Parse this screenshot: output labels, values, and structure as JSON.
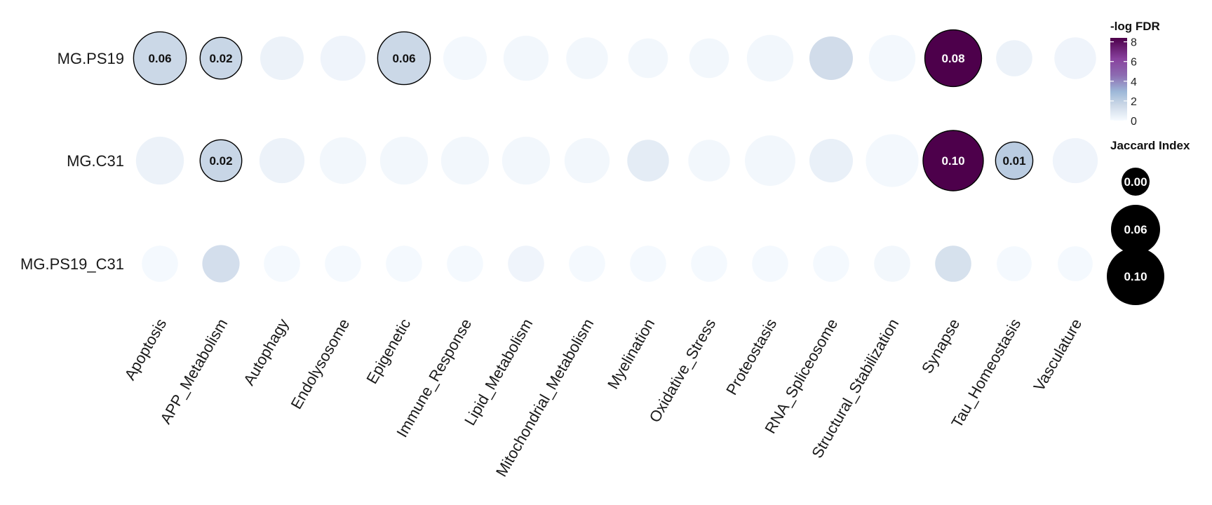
{
  "chart_data": {
    "type": "dot",
    "rows": [
      "MG.PS19",
      "MG.C31",
      "MG.PS19_C31"
    ],
    "columns": [
      "Apoptosis",
      "APP_Metabolism",
      "Autophagy",
      "Endolysosome",
      "Epigenetic",
      "Immune_Response",
      "Lipid_Metabolism",
      "Mitochondrial_Metabolism",
      "Myelination",
      "Oxidative_Stress",
      "Proteostasis",
      "RNA_Spliceosome",
      "Structural_Stabilization",
      "Synapse",
      "Tau_Homeostasis",
      "Vasculature"
    ],
    "points": [
      {
        "row": "MG.PS19",
        "col": "Apoptosis",
        "jaccard": 0.06,
        "neg_log_fdr": 1.6,
        "label": "0.06",
        "outlined": true
      },
      {
        "row": "MG.PS19",
        "col": "APP_Metabolism",
        "jaccard": 0.02,
        "neg_log_fdr": 1.7,
        "label": "0.02",
        "outlined": true
      },
      {
        "row": "MG.PS19",
        "col": "Autophagy",
        "jaccard": 0.025,
        "neg_log_fdr": 0.4
      },
      {
        "row": "MG.PS19",
        "col": "Endolysosome",
        "jaccard": 0.03,
        "neg_log_fdr": 0.3
      },
      {
        "row": "MG.PS19",
        "col": "Epigenetic",
        "jaccard": 0.06,
        "neg_log_fdr": 1.6,
        "label": "0.06",
        "outlined": true
      },
      {
        "row": "MG.PS19",
        "col": "Immune_Response",
        "jaccard": 0.025,
        "neg_log_fdr": 0.15
      },
      {
        "row": "MG.PS19",
        "col": "Lipid_Metabolism",
        "jaccard": 0.03,
        "neg_log_fdr": 0.2
      },
      {
        "row": "MG.PS19",
        "col": "Mitochondrial_Metabolism",
        "jaccard": 0.02,
        "neg_log_fdr": 0.2
      },
      {
        "row": "MG.PS19",
        "col": "Myelination",
        "jaccard": 0.015,
        "neg_log_fdr": 0.2
      },
      {
        "row": "MG.PS19",
        "col": "Oxidative_Stress",
        "jaccard": 0.015,
        "neg_log_fdr": 0.2
      },
      {
        "row": "MG.PS19",
        "col": "Proteostasis",
        "jaccard": 0.035,
        "neg_log_fdr": 0.2
      },
      {
        "row": "MG.PS19",
        "col": "RNA_Spliceosome",
        "jaccard": 0.025,
        "neg_log_fdr": 1.4
      },
      {
        "row": "MG.PS19",
        "col": "Structural_Stabilization",
        "jaccard": 0.035,
        "neg_log_fdr": 0.15
      },
      {
        "row": "MG.PS19",
        "col": "Synapse",
        "jaccard": 0.08,
        "neg_log_fdr": 8.4,
        "label": "0.08",
        "outlined": true
      },
      {
        "row": "MG.PS19",
        "col": "Tau_Homeostasis",
        "jaccard": 0.008,
        "neg_log_fdr": 0.4
      },
      {
        "row": "MG.PS19",
        "col": "Vasculature",
        "jaccard": 0.02,
        "neg_log_fdr": 0.3
      },
      {
        "row": "MG.C31",
        "col": "Apoptosis",
        "jaccard": 0.04,
        "neg_log_fdr": 0.4
      },
      {
        "row": "MG.C31",
        "col": "APP_Metabolism",
        "jaccard": 0.02,
        "neg_log_fdr": 1.7,
        "label": "0.02",
        "outlined": true
      },
      {
        "row": "MG.C31",
        "col": "Autophagy",
        "jaccard": 0.03,
        "neg_log_fdr": 0.4
      },
      {
        "row": "MG.C31",
        "col": "Endolysosome",
        "jaccard": 0.035,
        "neg_log_fdr": 0.2
      },
      {
        "row": "MG.C31",
        "col": "Epigenetic",
        "jaccard": 0.04,
        "neg_log_fdr": 0.2
      },
      {
        "row": "MG.C31",
        "col": "Immune_Response",
        "jaccard": 0.04,
        "neg_log_fdr": 0.2
      },
      {
        "row": "MG.C31",
        "col": "Lipid_Metabolism",
        "jaccard": 0.04,
        "neg_log_fdr": 0.2
      },
      {
        "row": "MG.C31",
        "col": "Mitochondrial_Metabolism",
        "jaccard": 0.03,
        "neg_log_fdr": 0.2
      },
      {
        "row": "MG.C31",
        "col": "Myelination",
        "jaccard": 0.02,
        "neg_log_fdr": 0.7
      },
      {
        "row": "MG.C31",
        "col": "Oxidative_Stress",
        "jaccard": 0.02,
        "neg_log_fdr": 0.2
      },
      {
        "row": "MG.C31",
        "col": "Proteostasis",
        "jaccard": 0.05,
        "neg_log_fdr": 0.2
      },
      {
        "row": "MG.C31",
        "col": "RNA_Spliceosome",
        "jaccard": 0.025,
        "neg_log_fdr": 0.5
      },
      {
        "row": "MG.C31",
        "col": "Structural_Stabilization",
        "jaccard": 0.06,
        "neg_log_fdr": 0.15
      },
      {
        "row": "MG.C31",
        "col": "Synapse",
        "jaccard": 0.1,
        "neg_log_fdr": 8.4,
        "label": "0.10",
        "outlined": true
      },
      {
        "row": "MG.C31",
        "col": "Tau_Homeostasis",
        "jaccard": 0.01,
        "neg_log_fdr": 2.1,
        "label": "0.01",
        "outlined": true
      },
      {
        "row": "MG.C31",
        "col": "Vasculature",
        "jaccard": 0.03,
        "neg_log_fdr": 0.3
      },
      {
        "row": "MG.PS19_C31",
        "col": "Apoptosis",
        "jaccard": 0.008,
        "neg_log_fdr": 0.1
      },
      {
        "row": "MG.PS19_C31",
        "col": "APP_Metabolism",
        "jaccard": 0.01,
        "neg_log_fdr": 1.3
      },
      {
        "row": "MG.PS19_C31",
        "col": "Autophagy",
        "jaccard": 0.008,
        "neg_log_fdr": 0.1
      },
      {
        "row": "MG.PS19_C31",
        "col": "Endolysosome",
        "jaccard": 0.008,
        "neg_log_fdr": 0.1
      },
      {
        "row": "MG.PS19_C31",
        "col": "Epigenetic",
        "jaccard": 0.008,
        "neg_log_fdr": 0.1
      },
      {
        "row": "MG.PS19_C31",
        "col": "Immune_Response",
        "jaccard": 0.008,
        "neg_log_fdr": 0.1
      },
      {
        "row": "MG.PS19_C31",
        "col": "Lipid_Metabolism",
        "jaccard": 0.008,
        "neg_log_fdr": 0.3
      },
      {
        "row": "MG.PS19_C31",
        "col": "Mitochondrial_Metabolism",
        "jaccard": 0.008,
        "neg_log_fdr": 0.1
      },
      {
        "row": "MG.PS19_C31",
        "col": "Myelination",
        "jaccard": 0.008,
        "neg_log_fdr": 0.1
      },
      {
        "row": "MG.PS19_C31",
        "col": "Oxidative_Stress",
        "jaccard": 0.008,
        "neg_log_fdr": 0.1
      },
      {
        "row": "MG.PS19_C31",
        "col": "Proteostasis",
        "jaccard": 0.008,
        "neg_log_fdr": 0.1
      },
      {
        "row": "MG.PS19_C31",
        "col": "RNA_Spliceosome",
        "jaccard": 0.008,
        "neg_log_fdr": 0.1
      },
      {
        "row": "MG.PS19_C31",
        "col": "Structural_Stabilization",
        "jaccard": 0.008,
        "neg_log_fdr": 0.2
      },
      {
        "row": "MG.PS19_C31",
        "col": "Synapse",
        "jaccard": 0.008,
        "neg_log_fdr": 1.2
      },
      {
        "row": "MG.PS19_C31",
        "col": "Tau_Homeostasis",
        "jaccard": 0.006,
        "neg_log_fdr": 0.1
      },
      {
        "row": "MG.PS19_C31",
        "col": "Vasculature",
        "jaccard": 0.006,
        "neg_log_fdr": 0.1
      }
    ],
    "color_legend": {
      "title": "-log FDR",
      "range": [
        0,
        8.4
      ],
      "ticks": [
        0,
        2,
        4,
        6,
        8
      ],
      "colors": [
        "#f7fbff",
        "#c9d6e6",
        "#9db8d8",
        "#8c6bb1",
        "#88419d",
        "#4d004b"
      ]
    },
    "size_legend": {
      "title": "Jaccard Index",
      "values": [
        0.0,
        0.06,
        0.1
      ],
      "labels": [
        "0.00",
        "0.06",
        "0.10"
      ],
      "color": "#000000"
    },
    "outline_color": "#000000"
  }
}
